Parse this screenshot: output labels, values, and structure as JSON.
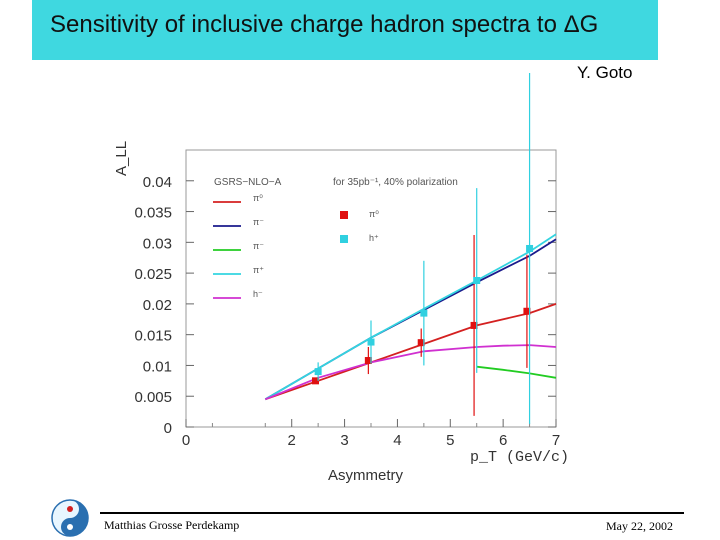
{
  "slide": {
    "title": "Sensitivity of inclusive charge hadron spectra to ΔG",
    "author": "Y. Goto",
    "footer_name": "Matthias Grosse Perdekamp",
    "footer_date": "May 22, 2002"
  },
  "colors": {
    "title_bg": "#3fd8e0",
    "pi0": "#d42020",
    "pi_minus_sel": "#1a1a8c",
    "pi_minus": "#22cc22",
    "pi_plus": "#33d4e0",
    "h_minus": "#d030d0",
    "marker_pi0": "#e01010",
    "marker_h": "#30d0e0"
  },
  "chart_data": {
    "type": "line",
    "title": "",
    "xlabel": "p_T (GeV/c)",
    "xlabel_below": "Asymmetry",
    "ylabel": "A_LL",
    "xlim": [
      0,
      7
    ],
    "ylim": [
      0,
      0.045
    ],
    "x_ticks": [
      "0",
      "2",
      "3",
      "4",
      "5",
      "6",
      "7"
    ],
    "x_tick_values": [
      0,
      2,
      3,
      4,
      5,
      6,
      7
    ],
    "y_ticks": [
      "0",
      "0.005",
      "0.01",
      "0.015",
      "0.02",
      "0.025",
      "0.03",
      "0.035",
      "0.04"
    ],
    "y_tick_values": [
      0,
      0.005,
      0.01,
      0.015,
      0.02,
      0.025,
      0.03,
      0.035,
      0.04
    ],
    "annotation_model": "GSRS−NLO−A",
    "annotation_lumi": "for 35pb⁻¹, 40% polarization",
    "series": [
      {
        "name": "π⁰",
        "color_key": "pi0",
        "x": [
          1.5,
          2.5,
          3.5,
          4.5,
          5.5,
          6.5,
          7.0
        ],
        "y": [
          0.0045,
          0.0075,
          0.0105,
          0.0135,
          0.0165,
          0.0185,
          0.02
        ]
      },
      {
        "name": "π⁻",
        "color_key": "pi_minus_sel",
        "x": [
          1.5,
          2.5,
          3.5,
          4.5,
          5.5,
          6.5,
          7.0
        ],
        "y": [
          0.0045,
          0.0095,
          0.0145,
          0.019,
          0.0235,
          0.0278,
          0.0305
        ]
      },
      {
        "name": "π⁻",
        "color_key": "pi_minus",
        "x": [
          5.5,
          6.0,
          6.5,
          7.0
        ],
        "y": [
          0.0098,
          0.0093,
          0.0087,
          0.008
        ]
      },
      {
        "name": "π⁺",
        "color_key": "pi_plus",
        "x": [
          1.5,
          2.5,
          3.5,
          4.5,
          5.5,
          6.5,
          7.0
        ],
        "y": [
          0.0045,
          0.0095,
          0.0145,
          0.0192,
          0.0238,
          0.0285,
          0.0313
        ]
      },
      {
        "name": "h⁻",
        "color_key": "h_minus",
        "x": [
          1.5,
          2.5,
          3.5,
          4.5,
          5.5,
          6.0,
          6.5,
          7.0
        ],
        "y": [
          0.0045,
          0.008,
          0.0105,
          0.0123,
          0.013,
          0.0132,
          0.0133,
          0.013
        ]
      }
    ],
    "markers": [
      {
        "name": "π⁰",
        "color_key": "marker_pi0",
        "points": [
          {
            "x": 2.45,
            "y": 0.0075,
            "err": 0.0005
          },
          {
            "x": 3.45,
            "y": 0.0108,
            "err": 0.0022
          },
          {
            "x": 4.45,
            "y": 0.0137,
            "err": 0.0023
          },
          {
            "x": 5.45,
            "y": 0.0165,
            "err": 0.0147
          },
          {
            "x": 6.45,
            "y": 0.0188,
            "err": 0.0092
          }
        ]
      },
      {
        "name": "h⁺",
        "color_key": "marker_h",
        "points": [
          {
            "x": 2.5,
            "y": 0.009,
            "err": 0.0015
          },
          {
            "x": 3.5,
            "y": 0.0138,
            "err": 0.0035
          },
          {
            "x": 4.5,
            "y": 0.0185,
            "err": 0.0085
          },
          {
            "x": 5.5,
            "y": 0.0238,
            "err": 0.015
          },
          {
            "x": 6.5,
            "y": 0.029,
            "err": 0.0285
          }
        ]
      }
    ]
  }
}
